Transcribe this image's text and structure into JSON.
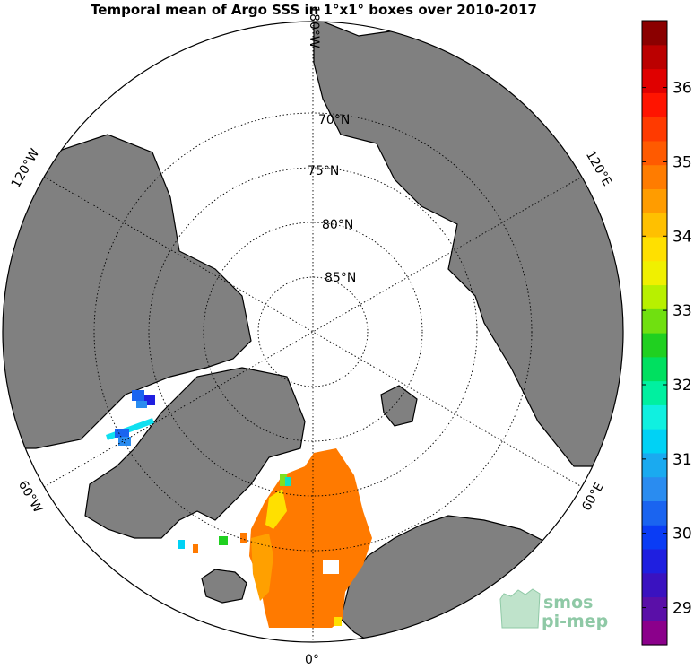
{
  "title": "Temporal mean of Argo SSS in 1°x1° boxes over 2010-2017",
  "latitude_labels": [
    "70°N",
    "75°N",
    "80°N",
    "85°N"
  ],
  "longitude_labels": {
    "top": "180°W",
    "upper_left": "120°W",
    "upper_right": "120°E",
    "lower_left": "60°W",
    "lower_right": "60°E",
    "bottom": "0°"
  },
  "colorbar": {
    "min": 28.5,
    "max": 36.9,
    "ticks": [
      "29",
      "30",
      "31",
      "32",
      "33",
      "34",
      "35",
      "36"
    ],
    "colors": [
      "#8b008b",
      "#5a0fa8",
      "#3a12c0",
      "#1f1fe0",
      "#0a3cf5",
      "#1a64f0",
      "#2a8cf0",
      "#1aaaf0",
      "#00d2f5",
      "#10f0e0",
      "#00f0a0",
      "#00e060",
      "#20d020",
      "#70e010",
      "#b8f000",
      "#f0f000",
      "#ffe000",
      "#ffc000",
      "#ff9c00",
      "#ff7c00",
      "#ff5a00",
      "#ff3a00",
      "#ff1400",
      "#e00000",
      "#bb0000",
      "#8b0000"
    ]
  },
  "logo": {
    "line1": "smos",
    "line2": "pi-mep"
  },
  "colors": {
    "land": "#808080",
    "salinity_dominant": "#ff7a00"
  }
}
